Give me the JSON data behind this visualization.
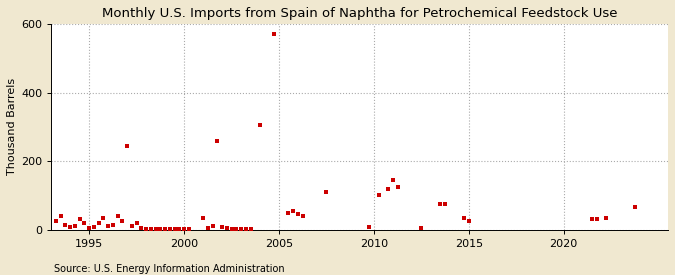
{
  "title": "Monthly U.S. Imports from Spain of Naphtha for Petrochemical Feedstock Use",
  "ylabel": "Thousand Barrels",
  "source": "Source: U.S. Energy Information Administration",
  "figure_bg": "#f0e8d0",
  "plot_bg": "#ffffff",
  "marker_color": "#cc0000",
  "ylim": [
    0,
    600
  ],
  "yticks": [
    0,
    200,
    400,
    600
  ],
  "xlim": [
    1993.0,
    2025.5
  ],
  "xticks": [
    1995,
    2000,
    2005,
    2010,
    2015,
    2020
  ],
  "data_points": [
    [
      1993.25,
      25
    ],
    [
      1993.5,
      40
    ],
    [
      1993.75,
      15
    ],
    [
      1994.0,
      8
    ],
    [
      1994.25,
      12
    ],
    [
      1994.5,
      30
    ],
    [
      1994.75,
      20
    ],
    [
      1995.0,
      5
    ],
    [
      1995.25,
      8
    ],
    [
      1995.5,
      20
    ],
    [
      1995.75,
      35
    ],
    [
      1996.0,
      10
    ],
    [
      1996.25,
      15
    ],
    [
      1996.5,
      40
    ],
    [
      1996.75,
      25
    ],
    [
      1997.0,
      243
    ],
    [
      1997.25,
      10
    ],
    [
      1997.5,
      20
    ],
    [
      1997.75,
      5
    ],
    [
      1998.0,
      3
    ],
    [
      1998.25,
      2
    ],
    [
      1998.5,
      3
    ],
    [
      1998.75,
      1
    ],
    [
      1999.0,
      2
    ],
    [
      1999.25,
      1
    ],
    [
      1999.5,
      2
    ],
    [
      1999.75,
      1
    ],
    [
      2000.0,
      1
    ],
    [
      2000.25,
      2
    ],
    [
      2001.0,
      35
    ],
    [
      2001.25,
      5
    ],
    [
      2001.5,
      10
    ],
    [
      2001.75,
      258
    ],
    [
      2002.0,
      8
    ],
    [
      2002.25,
      5
    ],
    [
      2002.5,
      3
    ],
    [
      2002.75,
      2
    ],
    [
      2003.0,
      1
    ],
    [
      2003.25,
      2
    ],
    [
      2003.5,
      1
    ],
    [
      2004.0,
      305
    ],
    [
      2004.75,
      570
    ],
    [
      2005.5,
      50
    ],
    [
      2005.75,
      55
    ],
    [
      2006.0,
      45
    ],
    [
      2006.25,
      40
    ],
    [
      2007.5,
      110
    ],
    [
      2009.75,
      8
    ],
    [
      2010.25,
      100
    ],
    [
      2010.75,
      120
    ],
    [
      2011.0,
      145
    ],
    [
      2011.25,
      125
    ],
    [
      2012.5,
      5
    ],
    [
      2013.5,
      75
    ],
    [
      2013.75,
      75
    ],
    [
      2014.75,
      35
    ],
    [
      2015.0,
      25
    ],
    [
      2021.5,
      30
    ],
    [
      2021.75,
      30
    ],
    [
      2022.25,
      35
    ],
    [
      2023.75,
      65
    ]
  ]
}
